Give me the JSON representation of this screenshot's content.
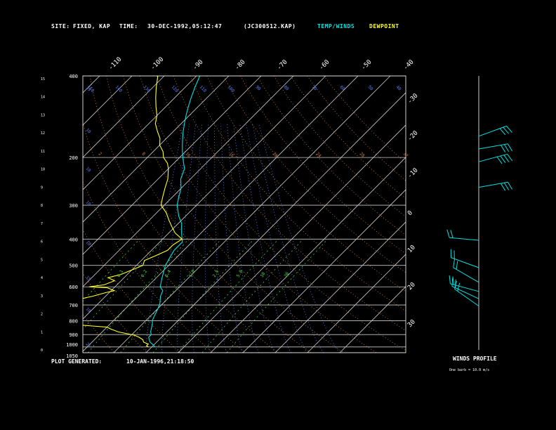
{
  "header": {
    "site_label": "SITE:",
    "site_value": "FIXED, KAP",
    "time_label": "TIME:",
    "time_value": "30-DEC-1992,05:12:47",
    "file_id": "(JC300512.KAP)",
    "temp_legend": "TEMP/WINDS",
    "dew_legend": "DEWPOINT"
  },
  "footer": {
    "generated_label": "PLOT GENERATED:",
    "generated_value": "10-JAN-1996,21:18:50"
  },
  "winds_panel": {
    "title": "WINDS PROFILE",
    "note": "One barb = 10.0 m/s"
  },
  "colors": {
    "temp": "#00e0e0",
    "dewpoint": "#ffff20",
    "isobar": "#c8c8c8",
    "isotherm": "#c8c8c8",
    "dry_adiabat": "#d08040",
    "moist_adiabat": "#6080ff",
    "mixing_ratio": "#50e050"
  },
  "chart_data": {
    "type": "line",
    "subtype": "skew-T log-p",
    "y_axis": {
      "scale": "log",
      "direction": "decreasing upward",
      "pressure_range": [
        1050,
        400
      ],
      "pressure_ticks": [
        "400",
        "200",
        "300",
        "400",
        "500",
        "600",
        "700",
        "800",
        "900",
        "1000",
        "1050"
      ],
      "height_ticks": [
        "0",
        "1",
        "2",
        "3",
        "4",
        "5",
        "6",
        "7",
        "8",
        "9",
        "10",
        "11",
        "12",
        "13",
        "14",
        "15"
      ]
    },
    "temperature_ticks_top": [
      "-110",
      "-100",
      "-90",
      "-80",
      "-70",
      "-60",
      "-50",
      "-40"
    ],
    "temperature_ticks_right": [
      "-30",
      "-20",
      "-10",
      "0",
      "10",
      "20",
      "30"
    ],
    "dry_adiabat_labels": [
      "150",
      "140",
      "130",
      "120",
      "110",
      "100",
      "90",
      "80",
      "70",
      "60",
      "50",
      "40"
    ],
    "moist_adiabat_labels": [
      "15",
      "10",
      "10",
      "10",
      "10",
      "15",
      "10",
      "25"
    ],
    "mixing_ratio_labels_upper": [
      "2",
      "8",
      "16",
      "16",
      "20",
      "24",
      "28",
      "32"
    ],
    "mixing_ratio_labels_lower": [
      "0.1",
      "0.2",
      "0.4",
      "1.0",
      "2.5",
      "5.0",
      "10",
      "20"
    ],
    "series": [
      {
        "name": "TEMP/WINDS",
        "points": [
          [
            1000,
            -19
          ],
          [
            985,
            -20
          ],
          [
            960,
            -22
          ],
          [
            940,
            -23
          ],
          [
            920,
            -24
          ],
          [
            900,
            -24
          ],
          [
            880,
            -25
          ],
          [
            850,
            -26
          ],
          [
            820,
            -27
          ],
          [
            800,
            -28
          ],
          [
            760,
            -29
          ],
          [
            720,
            -30
          ],
          [
            690,
            -31
          ],
          [
            650,
            -33
          ],
          [
            620,
            -34
          ],
          [
            600,
            -36
          ],
          [
            560,
            -38
          ],
          [
            520,
            -40
          ],
          [
            500,
            -41
          ],
          [
            470,
            -42
          ],
          [
            440,
            -43
          ],
          [
            410,
            -43
          ],
          [
            400,
            -44
          ],
          [
            380,
            -46
          ],
          [
            350,
            -49
          ],
          [
            330,
            -52
          ],
          [
            300,
            -56
          ],
          [
            280,
            -58
          ],
          [
            260,
            -60
          ],
          [
            240,
            -63
          ],
          [
            220,
            -65
          ],
          [
            210,
            -67
          ],
          [
            200,
            -69
          ],
          [
            190,
            -71
          ],
          [
            180,
            -73
          ],
          [
            170,
            -75
          ],
          [
            160,
            -77
          ],
          [
            150,
            -79
          ],
          [
            140,
            -81
          ],
          [
            130,
            -83
          ],
          [
            120,
            -85
          ],
          [
            110,
            -87
          ],
          [
            100,
            -89
          ],
          [
            95,
            -90
          ]
        ]
      },
      {
        "name": "DEWPOINT",
        "points": [
          [
            1000,
            -21
          ],
          [
            990,
            -22
          ],
          [
            975,
            -22
          ],
          [
            960,
            -24
          ],
          [
            940,
            -25
          ],
          [
            920,
            -27
          ],
          [
            905,
            -29
          ],
          [
            880,
            -35
          ],
          [
            860,
            -38
          ],
          [
            845,
            -40
          ],
          [
            835,
            -46
          ],
          [
            820,
            -55
          ],
          [
            810,
            -58
          ],
          [
            800,
            -62
          ],
          [
            790,
            -64
          ],
          [
            780,
            -63
          ],
          [
            760,
            -64
          ],
          [
            745,
            -66
          ],
          [
            730,
            -62
          ],
          [
            710,
            -60
          ],
          [
            690,
            -59
          ],
          [
            670,
            -58
          ],
          [
            650,
            -54
          ],
          [
            630,
            -51
          ],
          [
            620,
            -49
          ],
          [
            605,
            -52
          ],
          [
            600,
            -58
          ],
          [
            590,
            -54
          ],
          [
            570,
            -52
          ],
          [
            555,
            -55
          ],
          [
            540,
            -52
          ],
          [
            520,
            -50
          ],
          [
            500,
            -48
          ],
          [
            480,
            -49
          ],
          [
            460,
            -47
          ],
          [
            440,
            -45
          ],
          [
            420,
            -45
          ],
          [
            400,
            -44
          ],
          [
            380,
            -48
          ],
          [
            360,
            -51
          ],
          [
            340,
            -54
          ],
          [
            320,
            -57
          ],
          [
            300,
            -61
          ],
          [
            280,
            -63
          ],
          [
            260,
            -65
          ],
          [
            240,
            -67
          ],
          [
            220,
            -70
          ],
          [
            210,
            -72
          ],
          [
            200,
            -75
          ],
          [
            190,
            -77
          ],
          [
            180,
            -80
          ],
          [
            170,
            -82
          ],
          [
            160,
            -85
          ],
          [
            150,
            -88
          ],
          [
            140,
            -90
          ],
          [
            130,
            -93
          ],
          [
            120,
            -96
          ],
          [
            110,
            -99
          ],
          [
            100,
            -102
          ],
          [
            90,
            -104
          ]
        ]
      }
    ],
    "winds": [
      {
        "height_km": 11.7,
        "speed_ms": 25
      },
      {
        "height_km": 11.0,
        "speed_ms": 30
      },
      {
        "height_km": 10.3,
        "speed_ms": 40
      },
      {
        "height_km": 8.9,
        "speed_ms": 30
      },
      {
        "height_km": 6.0,
        "speed_ms": 20
      },
      {
        "height_km": 4.5,
        "speed_ms": 20
      },
      {
        "height_km": 3.7,
        "speed_ms": 20
      },
      {
        "height_km": 3.2,
        "speed_ms": 20
      },
      {
        "height_km": 2.8,
        "speed_ms": 15
      },
      {
        "height_km": 2.4,
        "speed_ms": 15
      }
    ]
  }
}
